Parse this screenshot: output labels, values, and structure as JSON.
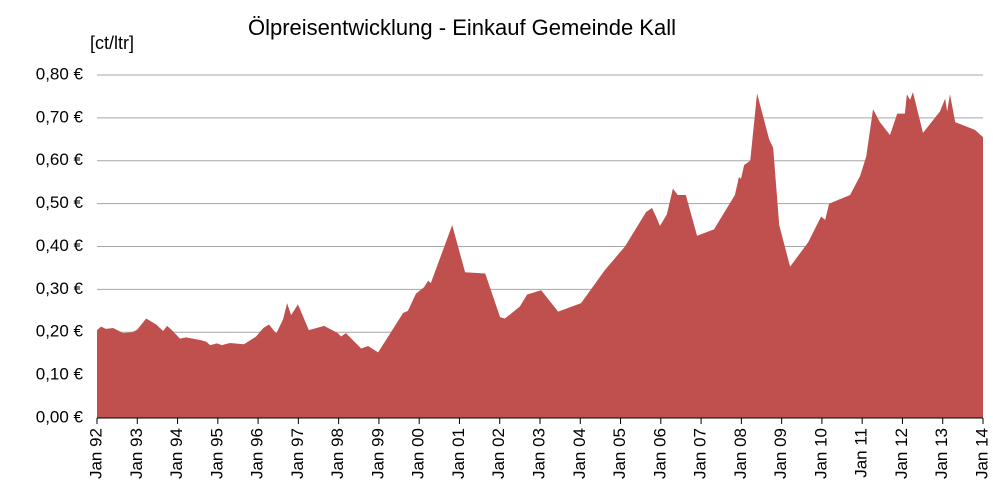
{
  "chart_data": {
    "type": "area",
    "title": "Ölpreisentwicklung - Einkauf Gemeinde Kall",
    "y_label": "[ct/ltr]",
    "color": "#c0504d",
    "grid": true,
    "x": [
      1992.0,
      1992.1,
      1992.22,
      1992.4,
      1992.65,
      1992.87,
      1993.0,
      1993.22,
      1993.47,
      1993.64,
      1993.74,
      1993.86,
      1994.06,
      1994.21,
      1994.56,
      1994.71,
      1994.81,
      1994.98,
      1995.1,
      1995.3,
      1995.65,
      1995.95,
      1996.13,
      1996.27,
      1996.45,
      1996.62,
      1996.72,
      1996.82,
      1996.99,
      1997.26,
      1997.64,
      1997.98,
      1998.06,
      1998.18,
      1998.56,
      1998.73,
      1998.98,
      1999.6,
      1999.72,
      1999.92,
      2000.12,
      2000.22,
      2000.29,
      2000.82,
      2001.14,
      2001.64,
      2002.01,
      2002.13,
      2002.5,
      2002.68,
      2003.03,
      2003.45,
      2004.02,
      2004.61,
      2005.11,
      2005.63,
      2005.78,
      2005.88,
      2005.98,
      2006.15,
      2006.3,
      2006.42,
      2006.62,
      2006.9,
      2007.32,
      2007.84,
      2007.94,
      2007.99,
      2008.07,
      2008.22,
      2008.39,
      2008.69,
      2008.79,
      2008.94,
      2009.21,
      2009.66,
      2009.98,
      2010.08,
      2010.18,
      2010.7,
      2010.95,
      2011.1,
      2011.27,
      2011.44,
      2011.69,
      2011.87,
      2012.06,
      2012.11,
      2012.19,
      2012.26,
      2012.51,
      2012.93,
      2013.06,
      2013.11,
      2013.18,
      2013.31,
      2013.8,
      2014.0
    ],
    "values": [
      0.205,
      0.213,
      0.208,
      0.21,
      0.198,
      0.2,
      0.206,
      0.232,
      0.218,
      0.203,
      0.215,
      0.205,
      0.185,
      0.188,
      0.182,
      0.178,
      0.17,
      0.174,
      0.17,
      0.175,
      0.172,
      0.19,
      0.21,
      0.218,
      0.197,
      0.23,
      0.268,
      0.24,
      0.265,
      0.205,
      0.215,
      0.198,
      0.19,
      0.198,
      0.162,
      0.168,
      0.153,
      0.245,
      0.25,
      0.29,
      0.305,
      0.32,
      0.315,
      0.45,
      0.34,
      0.337,
      0.235,
      0.232,
      0.26,
      0.288,
      0.298,
      0.248,
      0.268,
      0.345,
      0.4,
      0.48,
      0.49,
      0.47,
      0.448,
      0.475,
      0.535,
      0.52,
      0.52,
      0.425,
      0.44,
      0.52,
      0.562,
      0.558,
      0.59,
      0.6,
      0.757,
      0.65,
      0.63,
      0.45,
      0.353,
      0.41,
      0.47,
      0.462,
      0.5,
      0.52,
      0.565,
      0.61,
      0.72,
      0.69,
      0.66,
      0.71,
      0.71,
      0.755,
      0.742,
      0.76,
      0.665,
      0.715,
      0.745,
      0.715,
      0.755,
      0.69,
      0.672,
      0.655
    ],
    "xlim": [
      1992,
      2014
    ],
    "xticks": [
      {
        "value": 1992,
        "label": "Jan 92"
      },
      {
        "value": 1993,
        "label": "Jan 93"
      },
      {
        "value": 1994,
        "label": "Jan 94"
      },
      {
        "value": 1995,
        "label": "Jan 95"
      },
      {
        "value": 1996,
        "label": "Jan 96"
      },
      {
        "value": 1997,
        "label": "Jan 97"
      },
      {
        "value": 1998,
        "label": "Jan 98"
      },
      {
        "value": 1999,
        "label": "Jan 99"
      },
      {
        "value": 2000,
        "label": "Jan 00"
      },
      {
        "value": 2001,
        "label": "Jan 01"
      },
      {
        "value": 2002,
        "label": "Jan 02"
      },
      {
        "value": 2003,
        "label": "Jan 03"
      },
      {
        "value": 2004,
        "label": "Jan 04"
      },
      {
        "value": 2005,
        "label": "Jan 05"
      },
      {
        "value": 2006,
        "label": "Jan 06"
      },
      {
        "value": 2007,
        "label": "Jan 07"
      },
      {
        "value": 2008,
        "label": "Jan 08"
      },
      {
        "value": 2009,
        "label": "Jan 09"
      },
      {
        "value": 2010,
        "label": "Jan 10"
      },
      {
        "value": 2011,
        "label": "Jan 11"
      },
      {
        "value": 2012,
        "label": "Jan 12"
      },
      {
        "value": 2013,
        "label": "Jan 13"
      },
      {
        "value": 2014,
        "label": "Jan 14"
      }
    ],
    "ylim": [
      0,
      0.8
    ],
    "yticks": [
      {
        "value": 0,
        "label": "0,00 €"
      },
      {
        "value": 0.1,
        "label": "0,10 €"
      },
      {
        "value": 0.2,
        "label": "0,20 €"
      },
      {
        "value": 0.3,
        "label": "0,30 €"
      },
      {
        "value": 0.4,
        "label": "0,40 €"
      },
      {
        "value": 0.5,
        "label": "0,50 €"
      },
      {
        "value": 0.6,
        "label": "0,60 €"
      },
      {
        "value": 0.7,
        "label": "0,70 €"
      },
      {
        "value": 0.8,
        "label": "0,80 €"
      }
    ]
  }
}
